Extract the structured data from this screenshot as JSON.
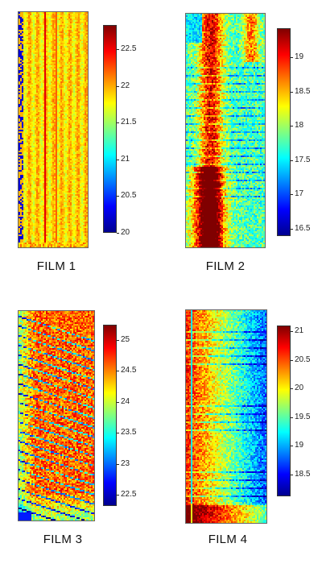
{
  "colormap": [
    "#00008f",
    "#0000ff",
    "#0080ff",
    "#00ffff",
    "#80ff80",
    "#ffff00",
    "#ff8000",
    "#ff0000",
    "#800000"
  ],
  "films": [
    {
      "caption": "FILM 1",
      "colorbar_ticks": [
        "22.5",
        "22",
        "21.5",
        "21",
        "20.5",
        "20"
      ],
      "pattern": "vertical-warm"
    },
    {
      "caption": "FILM 2",
      "colorbar_ticks": [
        "19",
        "18.5",
        "18",
        "17.5",
        "17",
        "16.5"
      ],
      "pattern": "left-hot-band"
    },
    {
      "caption": "FILM 3",
      "colorbar_ticks": [
        "25",
        "24.5",
        "24",
        "23.5",
        "23",
        "22.5"
      ],
      "pattern": "diagonal-stripes"
    },
    {
      "caption": "FILM 4",
      "colorbar_ticks": [
        "21",
        "20.5",
        "20",
        "19.5",
        "19",
        "18.5"
      ],
      "pattern": "right-cool-band"
    }
  ]
}
